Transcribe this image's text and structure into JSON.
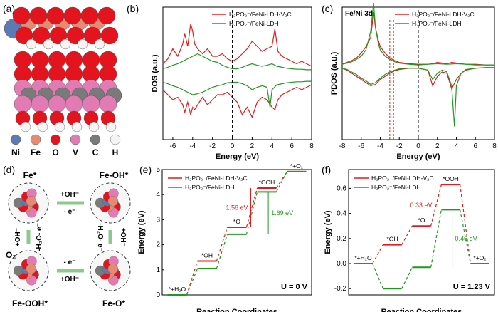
{
  "colors": {
    "red": "#e8191c",
    "green": "#1f9a1f",
    "ni": "#5b7bb5",
    "fe": "#e68a73",
    "o": "#e3141d",
    "v": "#e27ab3",
    "c": "#7a7a7a",
    "h": "#f4f4f4"
  },
  "panel_a": {
    "label": "(a)",
    "legend": [
      "Ni",
      "Fe",
      "O",
      "V",
      "C",
      "H"
    ]
  },
  "panel_d": {
    "label": "(d)",
    "states": [
      "Fe*",
      "Fe-OH*",
      "Fe-O*",
      "Fe-OOH*"
    ],
    "arrows": {
      "top_plus": "+OH⁻",
      "top_minus": "- e⁻",
      "right": "-H₂O- e⁻",
      "right2": "+OH⁻",
      "bottom_minus": "- e⁻",
      "bottom_plus": "+OH⁻",
      "left": "-H₂O- e⁻",
      "left2": "+OH⁻",
      "o2": "O₂"
    }
  },
  "chart_data": [
    {
      "panel": "(b)",
      "type": "line",
      "xlabel": "Energy (eV)",
      "ylabel": "DOS (a.u.)",
      "xlim": [
        -7,
        8
      ],
      "xticks": [
        -6,
        -4,
        -2,
        0,
        2,
        4,
        6,
        8
      ],
      "fermi": 0,
      "legend": [
        "H₂PO₂⁻/FeNi-LDH-V₂C",
        "H₂PO₂⁻/FeNi-LDH"
      ],
      "series": [
        {
          "name": "H₂PO₂⁻/FeNi-LDH-V₂C",
          "color": "#e8191c",
          "role": "up",
          "x": [
            -7,
            -6.5,
            -6,
            -5.5,
            -5,
            -4.8,
            -4.5,
            -4.2,
            -4,
            -3.8,
            -3.5,
            -3,
            -2.5,
            -2,
            -1.5,
            -1,
            -0.5,
            0,
            0.5,
            1,
            1.5,
            2,
            2.5,
            3,
            3.5,
            4,
            4.3,
            4.6,
            5,
            5.5,
            6,
            6.5,
            7,
            7.5,
            8
          ],
          "y": [
            0.15,
            0.25,
            0.45,
            0.3,
            0.55,
            0.75,
            0.5,
            0.95,
            0.8,
            0.55,
            0.45,
            0.35,
            0.45,
            0.3,
            0.3,
            0.35,
            0.25,
            0.2,
            0.25,
            0.35,
            0.45,
            0.6,
            0.5,
            0.4,
            0.45,
            0.5,
            0.85,
            0.4,
            0.3,
            0.25,
            0.2,
            0.15,
            0.2,
            0.15,
            0.1
          ]
        },
        {
          "name": "H₂PO₂⁻/FeNi-LDH-V₂C",
          "color": "#e8191c",
          "role": "down",
          "x": [
            -7,
            -6.5,
            -6,
            -5.5,
            -5,
            -4.8,
            -4.5,
            -4.2,
            -4,
            -3.8,
            -3.5,
            -3,
            -2.5,
            -2,
            -1.5,
            -1,
            -0.5,
            0,
            0.5,
            1,
            1.5,
            2,
            2.5,
            3,
            3.5,
            4,
            4.3,
            4.6,
            5,
            5.5,
            6,
            6.5,
            7,
            7.5,
            8
          ],
          "y": [
            0.2,
            0.3,
            0.4,
            0.35,
            0.5,
            0.65,
            0.45,
            0.7,
            0.55,
            0.6,
            0.5,
            0.35,
            0.5,
            0.4,
            0.3,
            0.3,
            0.25,
            0.35,
            0.45,
            0.7,
            0.55,
            0.75,
            0.45,
            0.35,
            0.4,
            0.55,
            0.6,
            0.4,
            0.3,
            0.25,
            0.2,
            0.15,
            0.2,
            0.15,
            0.1
          ]
        },
        {
          "name": "H₂PO₂⁻/FeNi-LDH",
          "color": "#1f9a1f",
          "role": "up",
          "x": [
            -7,
            -6.5,
            -6,
            -5.5,
            -5,
            -4.5,
            -4,
            -3.5,
            -3,
            -2.5,
            -2,
            -1.5,
            -1,
            -0.5,
            0,
            0.5,
            1,
            1.5,
            2,
            2.5,
            3,
            3.5,
            4,
            4.5,
            5,
            5.5,
            6,
            6.5,
            7,
            7.5,
            8
          ],
          "y": [
            0.05,
            0.08,
            0.12,
            0.15,
            0.2,
            0.25,
            0.3,
            0.35,
            0.3,
            0.25,
            0.2,
            0.18,
            0.12,
            0.08,
            0.05,
            0.05,
            0.08,
            0.12,
            0.15,
            0.12,
            0.1,
            0.12,
            0.15,
            0.1,
            0.08,
            0.06,
            0.05,
            0.04,
            0.04,
            0.03,
            0.03
          ]
        },
        {
          "name": "H₂PO₂⁻/FeNi-LDH",
          "color": "#1f9a1f",
          "role": "down",
          "x": [
            -7,
            -6.5,
            -6,
            -5.5,
            -5,
            -4.5,
            -4,
            -3.5,
            -3,
            -2.5,
            -2,
            -1.5,
            -1,
            -0.5,
            0,
            0.5,
            1,
            1.5,
            2,
            2.5,
            3,
            3.5,
            3.8,
            4,
            4.5,
            5,
            5.5,
            6,
            6.5,
            7,
            7.5,
            8
          ],
          "y": [
            0.05,
            0.08,
            0.12,
            0.15,
            0.2,
            0.25,
            0.3,
            0.28,
            0.25,
            0.2,
            0.15,
            0.12,
            0.1,
            0.06,
            0.05,
            0.05,
            0.08,
            0.12,
            0.2,
            0.15,
            0.12,
            0.15,
            0.55,
            0.2,
            0.1,
            0.08,
            0.06,
            0.05,
            0.04,
            0.04,
            0.03,
            0.03
          ]
        }
      ]
    },
    {
      "panel": "(c)",
      "type": "line",
      "xlabel": "Energy (eV)",
      "ylabel": "PDOS (a.u.)",
      "annotation": "Fe/Ni 3d",
      "xlim": [
        -8,
        8
      ],
      "xticks": [
        -8,
        -6,
        -4,
        -2,
        0,
        2,
        4,
        6,
        8
      ],
      "fermi": 0,
      "dband_red": -3.0,
      "dband_green": -2.6,
      "legend": [
        "H₂PO₂⁻/FeNi-LDH-V₂C",
        "H₂PO₂⁻/FeNi-LDH"
      ],
      "series": [
        {
          "name": "H₂PO₂⁻/FeNi-LDH-V₂C",
          "color": "#e8191c",
          "role": "up",
          "x": [
            -8,
            -7.5,
            -7,
            -6.5,
            -6,
            -5.5,
            -5,
            -4.7,
            -4.5,
            -4.2,
            -4,
            -3.5,
            -3,
            -2.5,
            -2,
            -1.5,
            -1,
            0,
            1,
            1.5,
            2,
            2.5,
            3,
            3.5,
            4,
            4.5,
            5,
            6,
            7,
            8
          ],
          "y": [
            0.02,
            0.05,
            0.08,
            0.12,
            0.2,
            0.3,
            0.45,
            0.85,
            0.6,
            0.4,
            0.3,
            0.2,
            0.12,
            0.08,
            0.05,
            0.04,
            0.03,
            0.02,
            0.02,
            0.03,
            0.05,
            0.04,
            0.03,
            0.05,
            0.04,
            0.03,
            0.02,
            0.02,
            0.01,
            0.01
          ]
        },
        {
          "name": "H₂PO₂⁻/FeNi-LDH-V₂C",
          "color": "#e8191c",
          "role": "down",
          "x": [
            -8,
            -7.5,
            -7,
            -6.5,
            -6,
            -5.5,
            -5,
            -4.5,
            -4,
            -3.5,
            -3,
            -2.5,
            -2,
            -1.5,
            -1,
            0,
            1,
            1.5,
            2,
            2.5,
            3,
            3.5,
            4,
            4.5,
            5,
            6,
            7,
            8
          ],
          "y": [
            0.02,
            0.05,
            0.1,
            0.15,
            0.2,
            0.25,
            0.3,
            0.28,
            0.2,
            0.15,
            0.1,
            0.06,
            0.04,
            0.03,
            0.02,
            0.02,
            0.05,
            0.3,
            0.15,
            0.08,
            0.1,
            0.35,
            0.2,
            0.1,
            0.05,
            0.02,
            0.01,
            0.01
          ]
        },
        {
          "name": "H₂PO₂⁻/FeNi-LDH",
          "color": "#1f9a1f",
          "role": "up",
          "x": [
            -8,
            -7.5,
            -7,
            -6.5,
            -6,
            -5.5,
            -5,
            -4.7,
            -4.5,
            -4.2,
            -4,
            -3.5,
            -3,
            -2.5,
            -2,
            -1.5,
            -1,
            0,
            1,
            2,
            3,
            4,
            5,
            6,
            7,
            8
          ],
          "y": [
            0.02,
            0.04,
            0.06,
            0.1,
            0.15,
            0.25,
            0.55,
            1.0,
            0.6,
            0.35,
            0.25,
            0.15,
            0.1,
            0.06,
            0.04,
            0.03,
            0.02,
            0.01,
            0.02,
            0.03,
            0.02,
            0.03,
            0.02,
            0.01,
            0.01,
            0.01
          ]
        },
        {
          "name": "H₂PO₂⁻/FeNi-LDH",
          "color": "#1f9a1f",
          "role": "down",
          "x": [
            -8,
            -7.5,
            -7,
            -6.5,
            -6,
            -5.5,
            -5,
            -4.5,
            -4,
            -3.5,
            -3,
            -2.5,
            -2,
            -1.5,
            -1,
            0,
            1,
            1.5,
            2,
            2.5,
            3,
            3.5,
            3.8,
            4,
            4.5,
            5,
            6,
            7,
            8
          ],
          "y": [
            0.02,
            0.04,
            0.08,
            0.12,
            0.18,
            0.22,
            0.28,
            0.25,
            0.18,
            0.12,
            0.08,
            0.05,
            0.03,
            0.02,
            0.02,
            0.02,
            0.05,
            0.2,
            0.1,
            0.05,
            0.08,
            0.3,
            0.95,
            0.3,
            0.1,
            0.04,
            0.02,
            0.01,
            0.01
          ]
        }
      ]
    },
    {
      "panel": "(e)",
      "type": "line",
      "subtype": "step",
      "xlabel": "Reaction Coordinates",
      "ylabel": "Energy (eV)",
      "ylim": [
        0,
        5
      ],
      "yticks": [
        0,
        1,
        2,
        3,
        4,
        5
      ],
      "steps": [
        "*+H₂O",
        "*OH",
        "*O",
        "*OOH",
        "*+O₂"
      ],
      "condition": "U = 0 V",
      "legend": [
        "H₂PO₂⁻/FeNi-LDH-V₂C",
        "H₂PO₂⁻/FeNi-LDH"
      ],
      "series": [
        {
          "name": "H₂PO₂⁻/FeNi-LDH-V₂C",
          "color": "#e8191c",
          "values": [
            0,
            1.35,
            2.7,
            4.26,
            4.92
          ]
        },
        {
          "name": "H₂PO₂⁻/FeNi-LDH",
          "color": "#1f9a1f",
          "values": [
            0,
            1.05,
            2.42,
            4.11,
            4.92
          ]
        }
      ],
      "annotations": [
        {
          "text": "1.56 eV",
          "color": "#e8191c"
        },
        {
          "text": "1.69 eV",
          "color": "#1f9a1f"
        }
      ]
    },
    {
      "panel": "(f)",
      "type": "line",
      "subtype": "step",
      "xlabel": "Reaction Coordinates",
      "ylabel": "Energy (eV)",
      "ylim": [
        -0.25,
        0.75
      ],
      "yticks": [
        -0.2,
        0.0,
        0.2,
        0.4,
        0.6
      ],
      "steps": [
        "*+H₂O",
        "*OH",
        "*O",
        "*OOH",
        "*+O₂"
      ],
      "condition": "U = 1.23 V",
      "legend": [
        "H₂PO₂⁻/FeNi-LDH-V₂C",
        "H₂PO₂⁻/FeNi-LDH"
      ],
      "series": [
        {
          "name": "H₂PO₂⁻/FeNi-LDH-V₂C",
          "color": "#e8191c",
          "values": [
            0,
            0.15,
            0.3,
            0.63,
            0
          ]
        },
        {
          "name": "H₂PO₂⁻/FeNi-LDH",
          "color": "#1f9a1f",
          "values": [
            0,
            -0.2,
            -0.03,
            0.43,
            0
          ]
        }
      ],
      "annotations": [
        {
          "text": "0.33 eV",
          "color": "#e8191c"
        },
        {
          "text": "0.46 eV",
          "color": "#1f9a1f"
        }
      ]
    }
  ]
}
